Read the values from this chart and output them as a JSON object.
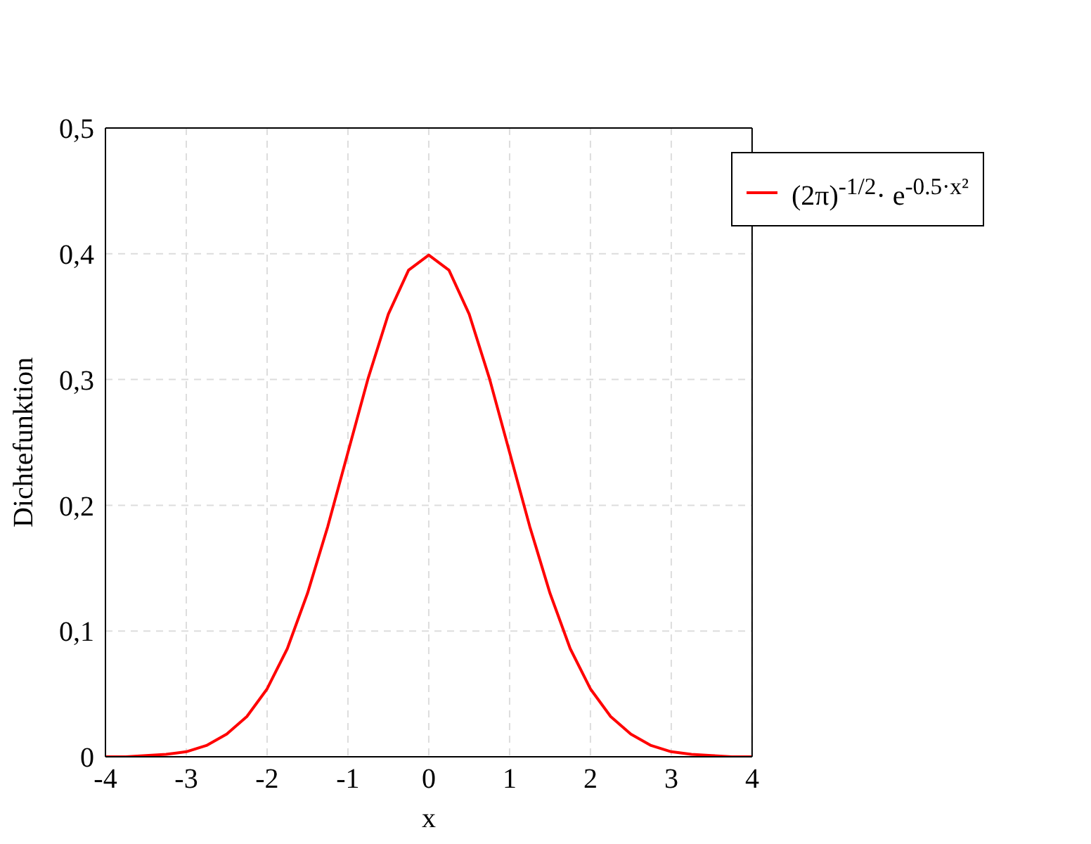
{
  "chart_data": {
    "type": "line",
    "xlabel": "x",
    "ylabel": "Dichtefunktion",
    "x": [
      -4,
      -3.75,
      -3.5,
      -3.25,
      -3,
      -2.75,
      -2.5,
      -2.25,
      -2,
      -1.75,
      -1.5,
      -1.25,
      -1,
      -0.75,
      -0.5,
      -0.25,
      0,
      0.25,
      0.5,
      0.75,
      1,
      1.25,
      1.5,
      1.75,
      2,
      2.25,
      2.5,
      2.75,
      3,
      3.25,
      3.5,
      3.75,
      4
    ],
    "series": [
      {
        "name": "(2π)$^{-1/2}$· e$^{-0.5·x²}$",
        "color": "#ff0000",
        "values": [
          0.0,
          0.0,
          0.001,
          0.002,
          0.004,
          0.009,
          0.018,
          0.032,
          0.054,
          0.086,
          0.13,
          0.183,
          0.242,
          0.301,
          0.352,
          0.387,
          0.399,
          0.387,
          0.352,
          0.301,
          0.242,
          0.183,
          0.13,
          0.086,
          0.054,
          0.032,
          0.018,
          0.009,
          0.004,
          0.002,
          0.001,
          0.0,
          0.0
        ]
      }
    ],
    "xlim": [
      -4,
      4
    ],
    "xticks": [
      -4,
      -3,
      -2,
      -1,
      0,
      1,
      2,
      3,
      4
    ],
    "ylim": [
      0,
      0.5
    ],
    "yticks": [
      0,
      {
        "value": 0.1,
        "label": "0,1"
      },
      {
        "value": 0.2,
        "label": "0,2"
      },
      {
        "value": 0.3,
        "label": "0,3"
      },
      {
        "value": 0.4,
        "label": "0,4"
      },
      {
        "value": 0.5,
        "label": "0,5"
      }
    ],
    "grid": true,
    "legend": "top right",
    "marker": "none",
    "line_style": "solid"
  }
}
